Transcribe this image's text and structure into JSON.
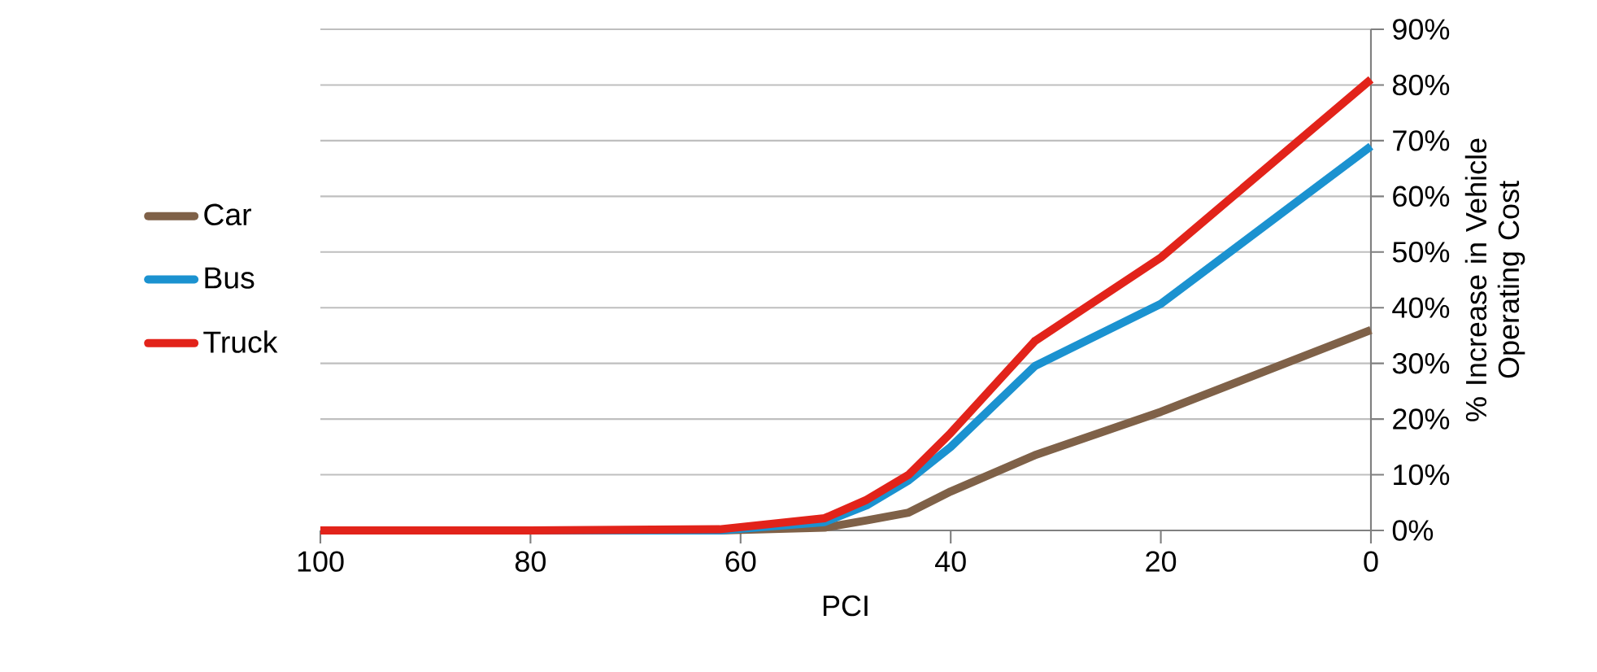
{
  "chart_data": {
    "type": "line",
    "xlabel": "PCI",
    "ylabel": "% Increase in Vehicle Operating Cost",
    "x": [
      100,
      80,
      62,
      52,
      48,
      44,
      40,
      32,
      20,
      0
    ],
    "series": [
      {
        "name": "Car",
        "color": "#7f6148",
        "values": [
          0,
          0,
          0,
          0.5,
          1.8,
          3.2,
          7,
          13.5,
          21.3,
          36
        ]
      },
      {
        "name": "Bus",
        "color": "#1b92d0",
        "values": [
          0,
          0,
          0,
          1.5,
          4.5,
          9,
          15,
          29.5,
          40.7,
          69
        ]
      },
      {
        "name": "Truck",
        "color": "#e2231a",
        "values": [
          0,
          0,
          0.2,
          2.2,
          5.5,
          10,
          17.5,
          34,
          49,
          81
        ]
      }
    ],
    "xlim": [
      100,
      0
    ],
    "xticks": [
      100,
      80,
      60,
      40,
      20,
      0
    ],
    "ylim": [
      0,
      90
    ],
    "yticks": [
      {
        "value": 0,
        "label": "0%"
      },
      {
        "value": 10,
        "label": "10%"
      },
      {
        "value": 20,
        "label": "20%"
      },
      {
        "value": 30,
        "label": "30%"
      },
      {
        "value": 40,
        "label": "40%"
      },
      {
        "value": 50,
        "label": "50%"
      },
      {
        "value": 60,
        "label": "60%"
      },
      {
        "value": 70,
        "label": "70%"
      },
      {
        "value": 80,
        "label": "80%"
      },
      {
        "value": 90,
        "label": "90%"
      }
    ],
    "grid": "y",
    "legend": "left",
    "marker": "none",
    "line_style": "solid"
  }
}
